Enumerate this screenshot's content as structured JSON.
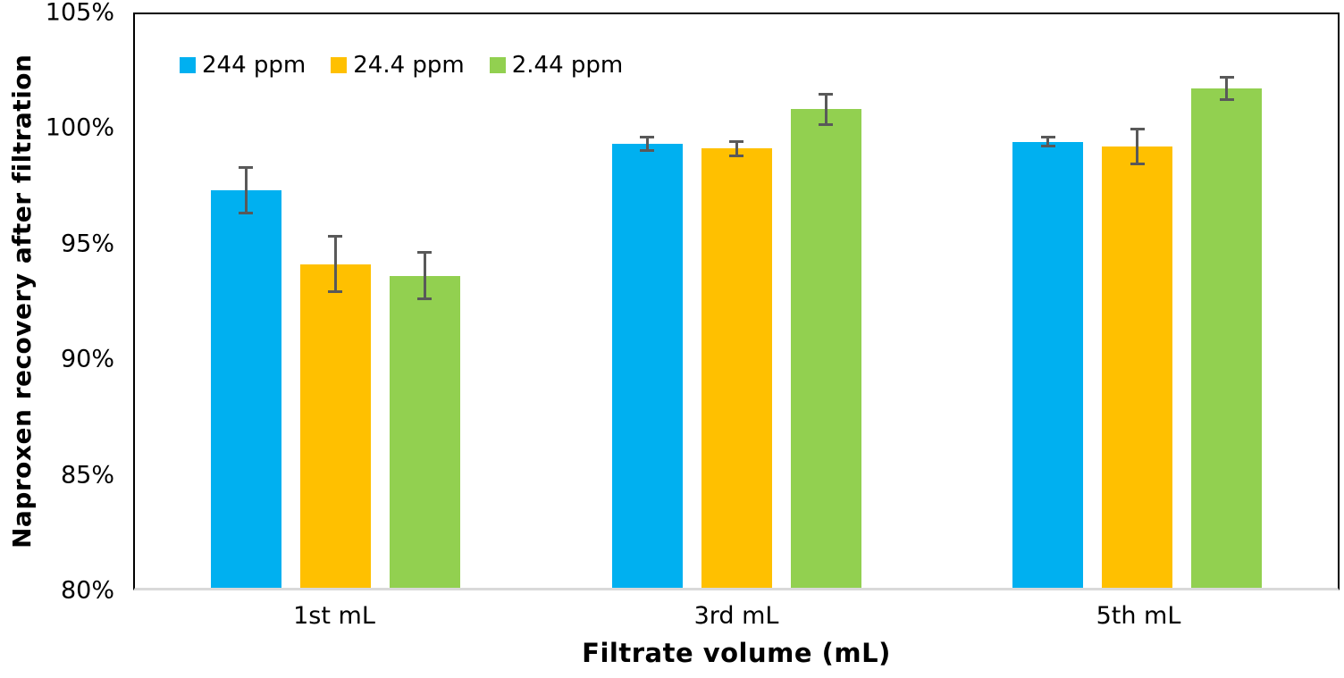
{
  "figure": {
    "background_color": "#FFFFFF",
    "text_color": "#000000",
    "plot_border_color": "#000000",
    "x_axis_line_color": "#D9D9D9",
    "error_bar_color": "#595959"
  },
  "chart_data": {
    "type": "bar",
    "title": "",
    "categories": [
      "1st mL",
      "3rd mL",
      "5th mL"
    ],
    "series": [
      {
        "name": "244 ppm",
        "color": "#00B0F0",
        "values": [
          97.2,
          99.2,
          99.3
        ],
        "errors": [
          1.0,
          0.3,
          0.2
        ]
      },
      {
        "name": "24.4 ppm",
        "color": "#FFC000",
        "values": [
          94.0,
          99.0,
          99.1
        ],
        "errors": [
          1.2,
          0.3,
          0.75
        ]
      },
      {
        "name": "2.44 ppm",
        "color": "#92D050",
        "values": [
          93.5,
          100.7,
          101.6
        ],
        "errors": [
          1.0,
          0.65,
          0.5
        ]
      }
    ],
    "xlabel": "Filtrate volume (mL)",
    "ylabel": "Naproxen recovery after filtration",
    "ylim": [
      80,
      105
    ],
    "yticks": [
      105,
      100,
      95,
      90,
      85,
      80
    ],
    "ytick_labels": [
      "105%",
      "100%",
      "95%",
      "90%",
      "85%",
      "80%"
    ],
    "unit": "%",
    "grid": false,
    "legend_position": "top-left-inside"
  }
}
